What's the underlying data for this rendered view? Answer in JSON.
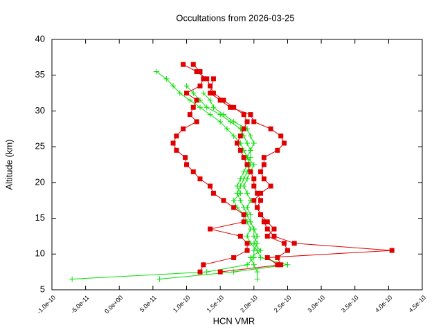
{
  "chart_data": {
    "type": "line",
    "title": "Occultations from 2026-03-25",
    "xlabel": "HCN VMR",
    "ylabel": "Altitude (km)",
    "xlim": [
      -1e-10,
      4.5e-10
    ],
    "ylim": [
      5,
      40
    ],
    "xticks": [
      {
        "value": -1e-10,
        "label": "-1.0e-10"
      },
      {
        "value": -5e-11,
        "label": "-5.0e-11"
      },
      {
        "value": 0,
        "label": "0.0e+00"
      },
      {
        "value": 5e-11,
        "label": "5.0e-11"
      },
      {
        "value": 1e-10,
        "label": "1.0e-10"
      },
      {
        "value": 1.5e-10,
        "label": "1.5e-10"
      },
      {
        "value": 2e-10,
        "label": "2.0e-10"
      },
      {
        "value": 2.5e-10,
        "label": "2.5e-10"
      },
      {
        "value": 3e-10,
        "label": "3.0e-10"
      },
      {
        "value": 3.5e-10,
        "label": "3.5e-10"
      },
      {
        "value": 4e-10,
        "label": "4.0e-10"
      },
      {
        "value": 4.5e-10,
        "label": "4.5e-10"
      }
    ],
    "yticks": [
      5,
      10,
      15,
      20,
      25,
      30,
      35,
      40
    ],
    "series": [
      {
        "color": "#00e000",
        "marker": "plus",
        "x": [
          5.5e-11,
          7e-11,
          8e-11,
          9e-11,
          1.05e-10,
          1.2e-10,
          1.35e-10,
          1.5e-10,
          1.6e-10,
          1.7e-10,
          1.8e-10,
          1.85e-10,
          1.9e-10,
          1.95e-10,
          1.9e-10,
          1.85e-10,
          1.8e-10,
          1.75e-10,
          1.8e-10,
          1.85e-10,
          1.9e-10,
          1.95e-10,
          2e-10,
          2e-10,
          2.05e-10,
          2e-10,
          2e-10,
          1.9e-10,
          1.3e-10,
          -7e-11
        ],
        "values": [
          35.5,
          34.5,
          33.5,
          32.5,
          31.5,
          30.5,
          29.5,
          28.5,
          27.5,
          26.5,
          25.5,
          24.5,
          23.5,
          22.5,
          21.5,
          20.5,
          19.5,
          18.5,
          17.5,
          16.5,
          15.5,
          14.5,
          13.5,
          12.5,
          11.5,
          10.5,
          9.5,
          8.5,
          7.5,
          6.5
        ]
      },
      {
        "color": "#00e000",
        "marker": "plus",
        "x": [
          1e-10,
          1.1e-10,
          1.2e-10,
          1.3e-10,
          1.5e-10,
          1.65e-10,
          1.8e-10,
          1.85e-10,
          1.9e-10,
          1.95e-10,
          1.95e-10,
          1.9e-10,
          1.85e-10,
          1.8e-10,
          1.75e-10,
          1.8e-10,
          1.7e-10,
          1.75e-10,
          1.85e-10,
          1.9e-10,
          1.95e-10,
          1.9e-10,
          1.95e-10,
          2.05e-10,
          2.1e-10,
          2.5e-10,
          1.7e-10,
          6e-11
        ],
        "values": [
          33.5,
          32.5,
          31.5,
          30.5,
          29.5,
          28.5,
          27.5,
          26.5,
          25.5,
          24.5,
          23.5,
          22.5,
          21.5,
          20.5,
          19.5,
          18.5,
          17.5,
          16.5,
          15.5,
          14.5,
          13.5,
          12.5,
          11.5,
          10.5,
          9.5,
          8.5,
          7.5,
          6.5
        ]
      },
      {
        "color": "#00e000",
        "marker": "plus",
        "x": [
          1.25e-10,
          1.35e-10,
          1.4e-10,
          1.55e-10,
          1.7e-10,
          1.9e-10,
          1.95e-10,
          2e-10,
          1.95e-10,
          1.9e-10,
          2e-10,
          1.95e-10,
          1.9e-10,
          1.85e-10,
          1.9e-10,
          1.95e-10,
          1.9e-10,
          1.95e-10,
          1.95e-10,
          2e-10,
          2.05e-10,
          2e-10,
          2.1e-10,
          1.95e-10,
          2e-10,
          2.05e-10,
          2.05e-10
        ],
        "values": [
          32.5,
          31.5,
          30.5,
          29.5,
          28.5,
          27.5,
          26.5,
          25.5,
          24.5,
          23.5,
          22.5,
          21.5,
          20.5,
          19.5,
          18.5,
          17.5,
          16.5,
          15.5,
          14.5,
          13.5,
          12.5,
          11.5,
          10.5,
          9.5,
          8.5,
          7.5,
          6.5
        ]
      },
      {
        "color": "#e00000",
        "marker": "square",
        "x": [
          9.5e-11,
          1.15e-10,
          1.3e-10,
          1.35e-10,
          1.4e-10,
          1.55e-10,
          1.7e-10,
          1.85e-10,
          1.9e-10,
          1.85e-10,
          1.8e-10,
          1.75e-10,
          1.8e-10,
          1.85e-10,
          1.9e-10,
          1.95e-10,
          2e-10,
          2e-10,
          2.05e-10,
          2.1e-10,
          2.05e-10,
          2.1e-10,
          2.15e-10,
          2.2e-10,
          2.3e-10,
          2.6e-10,
          4.05e-10,
          2.2e-10,
          2.35e-10
        ],
        "values": [
          36.5,
          35.5,
          34.5,
          33.5,
          32.5,
          31.5,
          30.5,
          29.5,
          28.5,
          27.5,
          26.5,
          25.5,
          24.5,
          23.5,
          22.5,
          21.5,
          20.5,
          19.5,
          18.5,
          17.5,
          16.5,
          15.5,
          14.5,
          13.5,
          12.5,
          11.5,
          10.5,
          9.5,
          8.5
        ]
      },
      {
        "color": "#e00000",
        "marker": "square",
        "x": [
          1.1e-10,
          1.2e-10,
          1.25e-10,
          1.2e-10,
          1e-10,
          1.15e-10,
          1.1e-10,
          1.05e-10,
          1.15e-10,
          9.5e-11,
          8.5e-11,
          8e-11,
          8.5e-11,
          9.8e-11,
          1e-10,
          1.1e-10,
          1.2e-10,
          1.35e-10,
          1.4e-10,
          1.55e-10,
          1.7e-10,
          1.85e-10,
          1.85e-10,
          1.35e-10,
          1.8e-10,
          1.9e-10,
          1.9e-10,
          1.7e-10,
          1.25e-10,
          1.2e-10
        ],
        "values": [
          36.5,
          35.5,
          34.5,
          33.5,
          32.5,
          31.5,
          30.5,
          29.5,
          28.5,
          27.5,
          26.5,
          25.5,
          24.5,
          23.5,
          22.5,
          21.5,
          20.5,
          19.5,
          18.5,
          17.5,
          16.5,
          15.5,
          14.5,
          13.5,
          12.5,
          11.5,
          10.5,
          9.5,
          8.5,
          7.5
        ]
      },
      {
        "color": "#e00000",
        "marker": "square",
        "x": [
          1.4e-10,
          1.35e-10,
          1.5e-10,
          1.65e-10,
          1.95e-10,
          2e-10,
          2.25e-10,
          2.4e-10,
          2.45e-10,
          2.35e-10,
          2.15e-10,
          2.15e-10,
          2.1e-10,
          2.15e-10,
          2.25e-10,
          2.1e-10,
          2e-10,
          2.05e-10,
          2.1e-10,
          2.2e-10,
          2.3e-10,
          2.2e-10,
          2.45e-10,
          2.5e-10,
          2.35e-10,
          2.4e-10,
          1.5e-10
        ],
        "values": [
          34.5,
          32.5,
          31.5,
          30.5,
          29.5,
          28.5,
          27.5,
          26.5,
          25.5,
          24.5,
          23.5,
          22.5,
          21.5,
          20.5,
          19.5,
          18.5,
          17.5,
          16.5,
          15.5,
          14.5,
          13.5,
          12.5,
          11.5,
          10.5,
          9.5,
          8.5,
          7.5
        ]
      }
    ]
  }
}
